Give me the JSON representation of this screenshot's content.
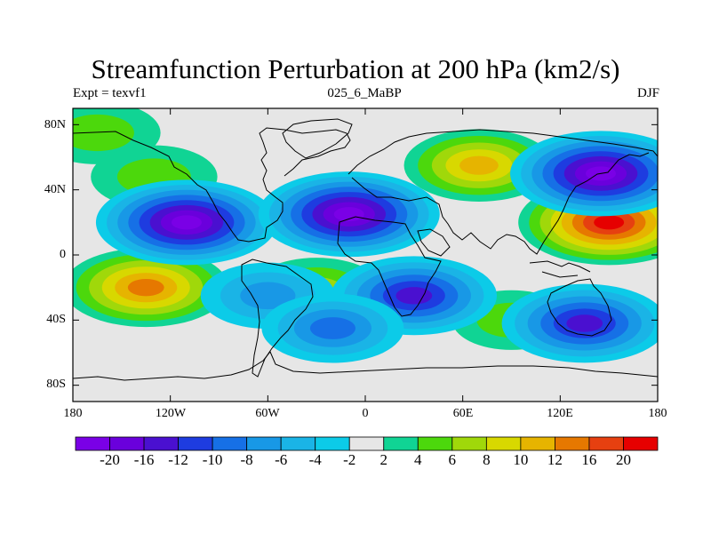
{
  "title": "Streamfunction Perturbation at 200 hPa (km2/s)",
  "subtitle": {
    "left": "Expt = texvf1",
    "center": "025_6_MaBP",
    "right": "DJF"
  },
  "axes": {
    "y_labels": [
      "80N",
      "40N",
      "0",
      "40S",
      "80S"
    ],
    "x_labels": [
      "180",
      "120W",
      "60W",
      "0",
      "60E",
      "120E",
      "180"
    ]
  },
  "map": {
    "field": "streamfunction perturbation",
    "level": "200 hPa",
    "units": "km2/s",
    "lon_range": [
      -180,
      180
    ],
    "lat_range": [
      -90,
      90
    ],
    "positive_centers": [
      {
        "lon": 150,
        "lat": 20,
        "value": 20
      },
      {
        "lon": 70,
        "lat": 55,
        "value": 12
      },
      {
        "lon": -135,
        "lat": -20,
        "value": 16
      },
      {
        "lon": -165,
        "lat": 75,
        "value": 6
      },
      {
        "lon": -130,
        "lat": 48,
        "value": 6
      },
      {
        "lon": -30,
        "lat": -22,
        "value": 8
      },
      {
        "lon": 90,
        "lat": -40,
        "value": 4
      }
    ],
    "negative_centers": [
      {
        "lon": -110,
        "lat": 20,
        "value": -20
      },
      {
        "lon": -10,
        "lat": 25,
        "value": -20
      },
      {
        "lon": 145,
        "lat": 50,
        "value": -20
      },
      {
        "lon": 30,
        "lat": -25,
        "value": -16
      },
      {
        "lon": 135,
        "lat": -42,
        "value": -16
      },
      {
        "lon": -60,
        "lat": -25,
        "value": -8
      },
      {
        "lon": -20,
        "lat": -45,
        "value": -10
      }
    ]
  },
  "colorbar": {
    "labels": [
      "-20",
      "-16",
      "-12",
      "-10",
      "-8",
      "-6",
      "-4",
      "-2",
      "2",
      "4",
      "6",
      "8",
      "10",
      "12",
      "16",
      "20"
    ],
    "colors": [
      "#7a00e6",
      "#6a00dc",
      "#4a10d0",
      "#1e3ce0",
      "#1670e6",
      "#1898e6",
      "#1ab4e6",
      "#0ccbe8",
      "#e6e6e6",
      "#10d494",
      "#4cd80c",
      "#a0d80a",
      "#d8d800",
      "#e6b400",
      "#e67800",
      "#e64010",
      "#e60000"
    ]
  }
}
